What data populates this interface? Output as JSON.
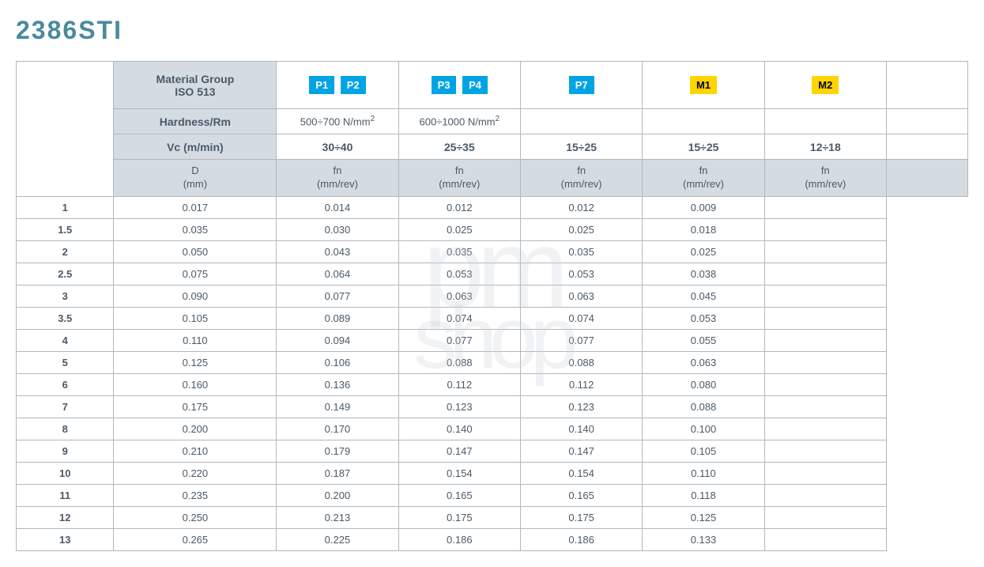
{
  "title": "2386STI",
  "headers": {
    "material_group": "Material Group\nISO 513",
    "hardness_rm": "Hardness/Rm",
    "vc": "Vc (m/min)",
    "d": "D\n(mm)",
    "fn": "fn\n(mm/rev)"
  },
  "columns": [
    {
      "badges": [
        {
          "label": "P1",
          "color": "blue"
        },
        {
          "label": "P2",
          "color": "blue"
        }
      ],
      "hardness": "500÷700 N/mm²",
      "vc": "30÷40"
    },
    {
      "badges": [
        {
          "label": "P3",
          "color": "blue"
        },
        {
          "label": "P4",
          "color": "blue"
        }
      ],
      "hardness": "600÷1000 N/mm²",
      "vc": "25÷35"
    },
    {
      "badges": [
        {
          "label": "P7",
          "color": "blue"
        }
      ],
      "hardness": "",
      "vc": "15÷25"
    },
    {
      "badges": [
        {
          "label": "M1",
          "color": "yellow"
        }
      ],
      "hardness": "",
      "vc": "15÷25"
    },
    {
      "badges": [
        {
          "label": "M2",
          "color": "yellow"
        }
      ],
      "hardness": "",
      "vc": "12÷18"
    }
  ],
  "rows": [
    {
      "d": "1",
      "values": [
        "0.017",
        "0.014",
        "0.012",
        "0.012",
        "0.009"
      ]
    },
    {
      "d": "1.5",
      "values": [
        "0.035",
        "0.030",
        "0.025",
        "0.025",
        "0.018"
      ]
    },
    {
      "d": "2",
      "values": [
        "0.050",
        "0.043",
        "0.035",
        "0.035",
        "0.025"
      ]
    },
    {
      "d": "2.5",
      "values": [
        "0.075",
        "0.064",
        "0.053",
        "0.053",
        "0.038"
      ]
    },
    {
      "d": "3",
      "values": [
        "0.090",
        "0.077",
        "0.063",
        "0.063",
        "0.045"
      ]
    },
    {
      "d": "3.5",
      "values": [
        "0.105",
        "0.089",
        "0.074",
        "0.074",
        "0.053"
      ]
    },
    {
      "d": "4",
      "values": [
        "0.110",
        "0.094",
        "0.077",
        "0.077",
        "0.055"
      ]
    },
    {
      "d": "5",
      "values": [
        "0.125",
        "0.106",
        "0.088",
        "0.088",
        "0.063"
      ]
    },
    {
      "d": "6",
      "values": [
        "0.160",
        "0.136",
        "0.112",
        "0.112",
        "0.080"
      ]
    },
    {
      "d": "7",
      "values": [
        "0.175",
        "0.149",
        "0.123",
        "0.123",
        "0.088"
      ]
    },
    {
      "d": "8",
      "values": [
        "0.200",
        "0.170",
        "0.140",
        "0.140",
        "0.100"
      ]
    },
    {
      "d": "9",
      "values": [
        "0.210",
        "0.179",
        "0.147",
        "0.147",
        "0.105"
      ]
    },
    {
      "d": "10",
      "values": [
        "0.220",
        "0.187",
        "0.154",
        "0.154",
        "0.110"
      ]
    },
    {
      "d": "11",
      "values": [
        "0.235",
        "0.200",
        "0.165",
        "0.165",
        "0.118"
      ]
    },
    {
      "d": "12",
      "values": [
        "0.250",
        "0.213",
        "0.175",
        "0.175",
        "0.125"
      ]
    },
    {
      "d": "13",
      "values": [
        "0.265",
        "0.225",
        "0.186",
        "0.186",
        "0.133"
      ]
    }
  ],
  "watermark": {
    "line1": "pm",
    "line2": "shop"
  },
  "styling": {
    "title_color": "#4a8a9e",
    "header_bg": "#d4dce2",
    "border_color": "#b0b8c0",
    "text_color": "#4a5a68",
    "badge_blue_bg": "#00a4e4",
    "badge_yellow_bg": "#ffd500",
    "title_fontsize": 32,
    "cell_fontsize": 13
  }
}
